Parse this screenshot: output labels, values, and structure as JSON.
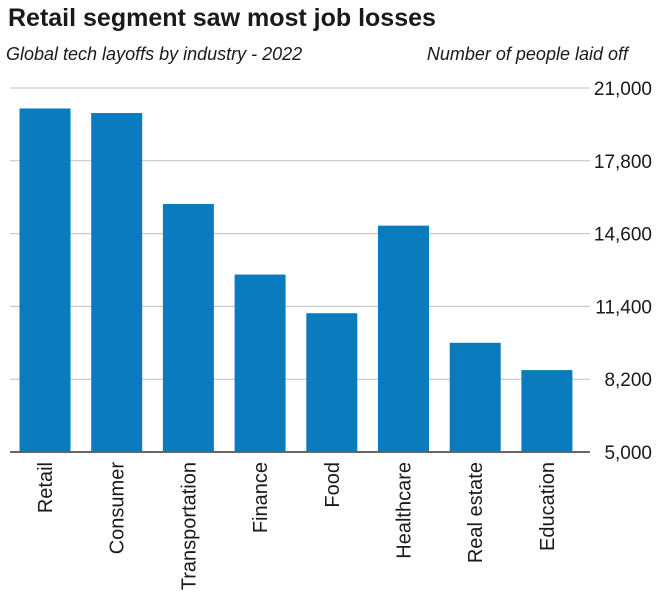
{
  "chart_data": {
    "type": "bar",
    "title": "Retail segment saw most job losses",
    "subtitle": "Global tech layoffs by industry - 2022",
    "ylabel": "Number of people laid off",
    "xlabel": "",
    "categories": [
      "Retail",
      "Consumer",
      "Transportation",
      "Finance",
      "Food",
      "Healthcare",
      "Real estate",
      "Education"
    ],
    "values": [
      20100,
      19900,
      15900,
      12800,
      11100,
      14950,
      9800,
      8600
    ],
    "ylim": [
      5000,
      21000
    ],
    "yticks": [
      "21,000",
      "17,800",
      "14,600",
      "11,400",
      "8,200",
      "5,000"
    ],
    "ytick_values": [
      21000,
      17800,
      14600,
      11400,
      8200,
      5000
    ],
    "grid": true,
    "bar_color": "#0a7bbd",
    "grid_color": "#bfbfbf",
    "axis_side": "right"
  }
}
